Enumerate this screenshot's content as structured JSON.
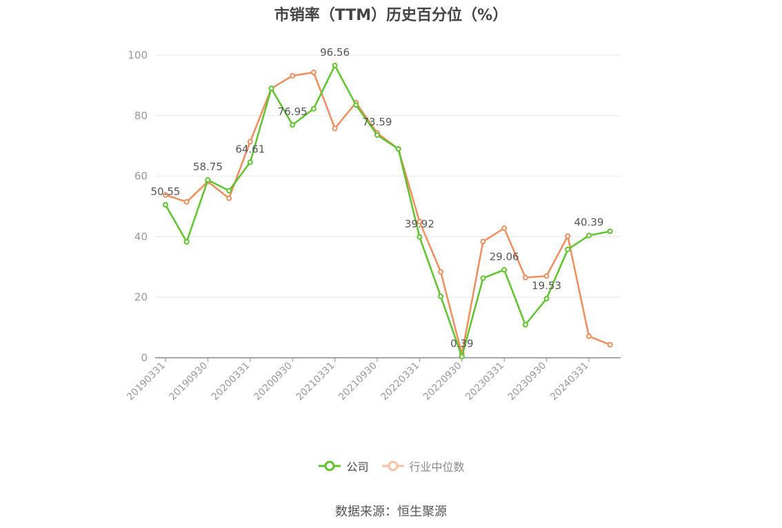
{
  "chart_data": {
    "type": "line",
    "title": "市销率（TTM）历史百分位（%）",
    "x_tick_labels": [
      "20190331",
      "20190930",
      "20200331",
      "20200930",
      "20210331",
      "20210930",
      "20220331",
      "20220930",
      "20230331",
      "20230930",
      "20240331"
    ],
    "x": [
      "20190331",
      "20190630",
      "20190930",
      "20191231",
      "20200331",
      "20200630",
      "20200930",
      "20201231",
      "20210331",
      "20210630",
      "20210930",
      "20211231",
      "20220331",
      "20220630",
      "20220930",
      "20221231",
      "20230331",
      "20230630",
      "20230930",
      "20231231",
      "20240331",
      "20240630"
    ],
    "ylim": [
      0,
      100
    ],
    "y_ticks": [
      0,
      20,
      40,
      60,
      80,
      100
    ],
    "grid": true,
    "legend_position": "bottom",
    "series": [
      {
        "name": "公司",
        "color": "#5cc52a",
        "values": [
          50.55,
          38.3,
          58.75,
          55.2,
          64.61,
          89.0,
          76.95,
          82.3,
          96.56,
          83.5,
          73.59,
          69.0,
          39.92,
          20.3,
          0.39,
          26.3,
          29.06,
          10.9,
          19.53,
          35.8,
          40.39,
          41.8
        ],
        "data_labels": [
          {
            "index": 0,
            "text": "50.55"
          },
          {
            "index": 2,
            "text": "58.75"
          },
          {
            "index": 4,
            "text": "64.61"
          },
          {
            "index": 6,
            "text": "76.95"
          },
          {
            "index": 8,
            "text": "96.56"
          },
          {
            "index": 10,
            "text": "73.59"
          },
          {
            "index": 12,
            "text": "39.92"
          },
          {
            "index": 14,
            "text": "0.39"
          },
          {
            "index": 16,
            "text": "29.06"
          },
          {
            "index": 18,
            "text": "19.53"
          },
          {
            "index": 20,
            "text": "40.39"
          }
        ]
      },
      {
        "name": "行业中位数",
        "color": "#f28c5a",
        "values": [
          53.8,
          51.5,
          58.2,
          52.7,
          71.4,
          89.0,
          93.2,
          94.3,
          75.8,
          84.3,
          74.3,
          69.0,
          45.0,
          28.4,
          1.2,
          38.4,
          42.8,
          26.5,
          27.0,
          40.2,
          7.1,
          4.3
        ]
      }
    ]
  },
  "legend": {
    "company_label": "公司",
    "industry_label": "行业中位数"
  },
  "source_text": "数据来源：恒生聚源"
}
